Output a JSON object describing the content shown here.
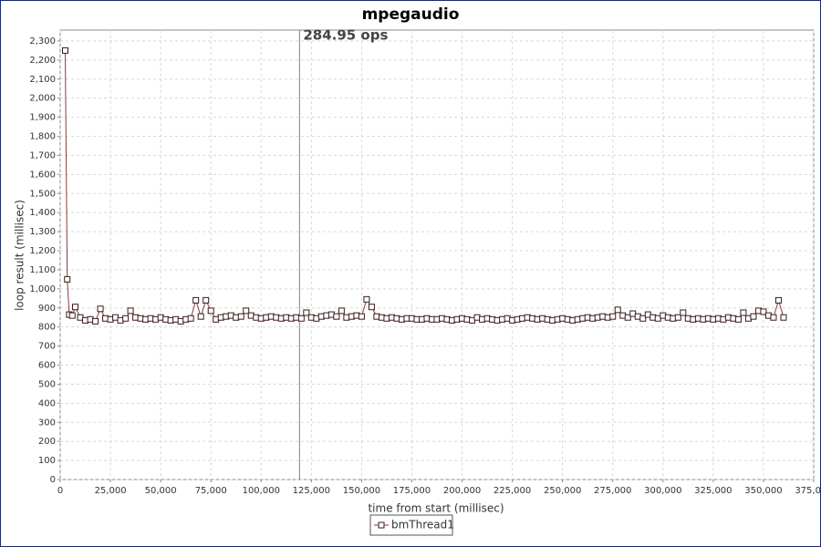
{
  "chart_data": {
    "type": "line",
    "title": "mpegaudio",
    "x_label": "time from start (millisec)",
    "y_label": "loop result (millisec)",
    "x": [
      2500,
      3500,
      4500,
      6000,
      7500,
      10000,
      12500,
      15000,
      17500,
      20000,
      22500,
      25000,
      27500,
      30000,
      32500,
      35000,
      37500,
      40000,
      42500,
      45000,
      47500,
      50000,
      52500,
      55000,
      57500,
      60000,
      62500,
      65000,
      67500,
      70000,
      72500,
      75000,
      77500,
      80000,
      82500,
      85000,
      87500,
      90000,
      92500,
      95000,
      97500,
      100000,
      102500,
      105000,
      107500,
      110000,
      112500,
      115000,
      117500,
      120000,
      122500,
      125000,
      127500,
      130000,
      132500,
      135000,
      137500,
      140000,
      142500,
      145000,
      147500,
      150000,
      152500,
      155000,
      157500,
      160000,
      162500,
      165000,
      167500,
      170000,
      172500,
      175000,
      177500,
      180000,
      182500,
      185000,
      187500,
      190000,
      192500,
      195000,
      197500,
      200000,
      202500,
      205000,
      207500,
      210000,
      212500,
      215000,
      217500,
      220000,
      222500,
      225000,
      227500,
      230000,
      232500,
      235000,
      237500,
      240000,
      242500,
      245000,
      247500,
      250000,
      252500,
      255000,
      257500,
      260000,
      262500,
      265000,
      267500,
      270000,
      272500,
      275000,
      277500,
      280000,
      282500,
      285000,
      287500,
      290000,
      292500,
      295000,
      297500,
      300000,
      302500,
      305000,
      307500,
      310000,
      312500,
      315000,
      317500,
      320000,
      322500,
      325000,
      327500,
      330000,
      332500,
      335000,
      337500,
      340000,
      342500,
      345000,
      347500,
      350000,
      352500,
      355000,
      357500,
      360000
    ],
    "series": [
      {
        "name": "bmThread1",
        "color": "#8b3a3a",
        "values": [
          2250,
          1050,
          865,
          860,
          905,
          850,
          835,
          840,
          830,
          895,
          845,
          840,
          850,
          835,
          845,
          885,
          850,
          845,
          840,
          845,
          840,
          850,
          840,
          835,
          840,
          830,
          840,
          845,
          940,
          855,
          940,
          885,
          840,
          850,
          855,
          860,
          850,
          855,
          885,
          860,
          850,
          845,
          850,
          855,
          850,
          845,
          850,
          845,
          850,
          845,
          875,
          850,
          845,
          855,
          860,
          865,
          855,
          885,
          850,
          855,
          860,
          855,
          945,
          905,
          855,
          850,
          845,
          850,
          845,
          840,
          845,
          845,
          840,
          840,
          845,
          840,
          840,
          845,
          840,
          835,
          840,
          845,
          840,
          835,
          850,
          840,
          845,
          840,
          835,
          840,
          845,
          835,
          840,
          845,
          850,
          845,
          840,
          845,
          840,
          835,
          840,
          845,
          840,
          835,
          840,
          845,
          850,
          845,
          850,
          855,
          850,
          855,
          890,
          860,
          850,
          870,
          855,
          845,
          865,
          850,
          845,
          860,
          850,
          845,
          850,
          875,
          845,
          840,
          845,
          840,
          845,
          840,
          845,
          840,
          850,
          845,
          840,
          875,
          845,
          855,
          885,
          880,
          860,
          850,
          940,
          850
        ]
      }
    ],
    "xlim": [
      0,
      375000
    ],
    "xticks": [
      0,
      {
        "value": 25000,
        "label": "25,000"
      },
      {
        "value": 50000,
        "label": "50,000"
      },
      {
        "value": 75000,
        "label": "75,000"
      },
      {
        "value": 100000,
        "label": "100,000"
      },
      {
        "value": 125000,
        "label": "125,000"
      },
      {
        "value": 150000,
        "label": "150,000"
      },
      {
        "value": 175000,
        "label": "175,000"
      },
      {
        "value": 200000,
        "label": "200,000"
      },
      {
        "value": 225000,
        "label": "225,000"
      },
      {
        "value": 250000,
        "label": "250,000"
      },
      {
        "value": 275000,
        "label": "275,000"
      },
      {
        "value": 300000,
        "label": "300,000"
      },
      {
        "value": 325000,
        "label": "325,000"
      },
      {
        "value": 350000,
        "label": "350,000"
      },
      {
        "value": 375000,
        "label": "375,000"
      }
    ],
    "ylim": [
      0,
      2357
    ],
    "yticks": [
      0,
      100,
      200,
      300,
      400,
      500,
      600,
      700,
      800,
      900,
      {
        "value": 1000,
        "label": "1,000"
      },
      {
        "value": 1100,
        "label": "1,100"
      },
      {
        "value": 1200,
        "label": "1,200"
      },
      {
        "value": 1300,
        "label": "1,300"
      },
      {
        "value": 1400,
        "label": "1,400"
      },
      {
        "value": 1500,
        "label": "1,500"
      },
      {
        "value": 1600,
        "label": "1,600"
      },
      {
        "value": 1700,
        "label": "1,700"
      },
      {
        "value": 1800,
        "label": "1,800"
      },
      {
        "value": 1900,
        "label": "1,900"
      },
      {
        "value": 2000,
        "label": "2,000"
      },
      {
        "value": 2100,
        "label": "2,100"
      },
      {
        "value": 2200,
        "label": "2,200"
      },
      {
        "value": 2300,
        "label": "2,300"
      }
    ],
    "grid": true,
    "marker": {
      "x": 119100,
      "label": "284.95 ops"
    },
    "legend": "bottom"
  }
}
